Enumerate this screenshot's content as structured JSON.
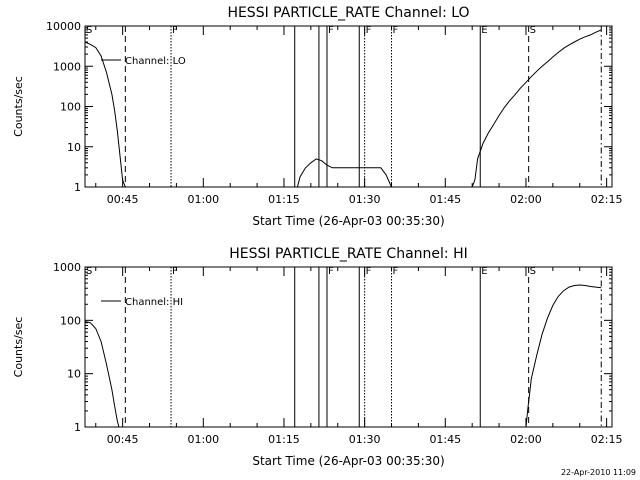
{
  "footer": {
    "timestamp": "22-Apr-2010 11:09"
  },
  "chart_data": [
    {
      "type": "line",
      "title": "HESSI PARTICLE_RATE Channel: LO",
      "xlabel": "Start Time (26-Apr-03 00:35:30)",
      "ylabel": "Counts/sec",
      "y_scale": "log",
      "ylim": [
        1,
        10000
      ],
      "y_ticks": [
        1,
        10,
        100,
        1000,
        10000
      ],
      "y_tick_labels": [
        "1",
        "10",
        "100",
        "1000",
        "10000"
      ],
      "xlim_minutes": [
        38,
        136
      ],
      "x_ticks": [
        45,
        60,
        75,
        90,
        105,
        120,
        135
      ],
      "x_tick_labels": [
        "00:45",
        "01:00",
        "01:15",
        "01:30",
        "01:45",
        "02:00",
        "02:15"
      ],
      "legend": {
        "label": "Channel: LO",
        "placement": "top-left"
      },
      "series": [
        {
          "name": "Channel: LO",
          "segments": [
            [
              [
                38,
                4000
              ],
              [
                39,
                3500
              ],
              [
                40,
                2900
              ],
              [
                41,
                1800
              ],
              [
                42,
                700
              ],
              [
                43,
                200
              ],
              [
                43.5,
                80
              ],
              [
                44,
                25
              ],
              [
                44.5,
                6
              ],
              [
                45,
                1.5
              ],
              [
                45.5,
                1
              ]
            ],
            [
              [
                77.5,
                1
              ],
              [
                78,
                1.8
              ],
              [
                79,
                3
              ],
              [
                80,
                4
              ],
              [
                81,
                5
              ],
              [
                82,
                4.5
              ],
              [
                83,
                3.5
              ],
              [
                84,
                3
              ],
              [
                86,
                3
              ],
              [
                88,
                3
              ],
              [
                90,
                3
              ],
              [
                92,
                3
              ],
              [
                93,
                3
              ],
              [
                94,
                2
              ],
              [
                95,
                1
              ]
            ],
            [
              [
                110,
                1
              ],
              [
                110.5,
                1.5
              ],
              [
                111,
                5
              ],
              [
                112,
                12
              ],
              [
                113,
                22
              ],
              [
                114,
                36
              ],
              [
                115,
                60
              ],
              [
                116,
                95
              ],
              [
                117,
                140
              ],
              [
                118,
                200
              ],
              [
                119,
                290
              ],
              [
                120,
                400
              ],
              [
                121,
                550
              ],
              [
                122,
                750
              ],
              [
                123,
                1000
              ],
              [
                124,
                1300
              ],
              [
                125,
                1700
              ],
              [
                126,
                2200
              ],
              [
                127,
                2800
              ],
              [
                128,
                3400
              ],
              [
                129,
                4000
              ],
              [
                130,
                4700
              ],
              [
                131,
                5400
              ],
              [
                132,
                6000
              ],
              [
                133,
                7000
              ],
              [
                134,
                8000
              ]
            ]
          ]
        }
      ],
      "markers": [
        {
          "minute": 38,
          "style": "solid",
          "label": "S"
        },
        {
          "minute": 45.5,
          "style": "dashed",
          "label": ""
        },
        {
          "minute": 54,
          "style": "dotted",
          "label": "F"
        },
        {
          "minute": 77,
          "style": "solid",
          "label": ""
        },
        {
          "minute": 81.5,
          "style": "solid",
          "label": ""
        },
        {
          "minute": 83,
          "style": "solid",
          "label": "F"
        },
        {
          "minute": 89,
          "style": "solid",
          "label": ""
        },
        {
          "minute": 90,
          "style": "dotted",
          "label": "F"
        },
        {
          "minute": 95,
          "style": "dotted",
          "label": "F"
        },
        {
          "minute": 111.5,
          "style": "solid",
          "label": "E"
        },
        {
          "minute": 120.5,
          "style": "dashed",
          "label": "S"
        },
        {
          "minute": 134,
          "style": "dashdot",
          "label": ""
        }
      ]
    },
    {
      "type": "line",
      "title": "HESSI PARTICLE_RATE Channel: HI",
      "xlabel": "Start Time (26-Apr-03 00:35:30)",
      "ylabel": "Counts/sec",
      "y_scale": "log",
      "ylim": [
        1,
        1000
      ],
      "y_ticks": [
        1,
        10,
        100,
        1000
      ],
      "y_tick_labels": [
        "1",
        "10",
        "100",
        "1000"
      ],
      "xlim_minutes": [
        38,
        136
      ],
      "x_ticks": [
        45,
        60,
        75,
        90,
        105,
        120,
        135
      ],
      "x_tick_labels": [
        "00:45",
        "01:00",
        "01:15",
        "01:30",
        "01:45",
        "02:00",
        "02:15"
      ],
      "legend": {
        "label": "Channel: HI",
        "placement": "top-left"
      },
      "series": [
        {
          "name": "Channel: HI",
          "segments": [
            [
              [
                38,
                95
              ],
              [
                39,
                90
              ],
              [
                40,
                70
              ],
              [
                41,
                40
              ],
              [
                42,
                15
              ],
              [
                43,
                5
              ],
              [
                43.5,
                2.5
              ],
              [
                44,
                1.3
              ],
              [
                44.3,
                1
              ]
            ],
            [
              [
                120,
                1
              ],
              [
                120.3,
                2
              ],
              [
                121,
                8
              ],
              [
                122,
                22
              ],
              [
                123,
                55
              ],
              [
                124,
                110
              ],
              [
                125,
                190
              ],
              [
                126,
                280
              ],
              [
                127,
                360
              ],
              [
                128,
                420
              ],
              [
                129,
                450
              ],
              [
                130,
                460
              ],
              [
                131,
                450
              ],
              [
                132,
                430
              ],
              [
                133,
                420
              ],
              [
                134,
                410
              ]
            ]
          ]
        }
      ],
      "markers": [
        {
          "minute": 38,
          "style": "solid",
          "label": "S"
        },
        {
          "minute": 45.5,
          "style": "dashed",
          "label": ""
        },
        {
          "minute": 54,
          "style": "dotted",
          "label": "F"
        },
        {
          "minute": 77,
          "style": "solid",
          "label": ""
        },
        {
          "minute": 81.5,
          "style": "solid",
          "label": ""
        },
        {
          "minute": 83,
          "style": "solid",
          "label": "F"
        },
        {
          "minute": 89,
          "style": "solid",
          "label": ""
        },
        {
          "minute": 90,
          "style": "dotted",
          "label": "F"
        },
        {
          "minute": 95,
          "style": "dotted",
          "label": "F"
        },
        {
          "minute": 111.5,
          "style": "solid",
          "label": "E"
        },
        {
          "minute": 120.5,
          "style": "dashed",
          "label": "S"
        },
        {
          "minute": 134,
          "style": "dashdot",
          "label": ""
        }
      ]
    }
  ]
}
